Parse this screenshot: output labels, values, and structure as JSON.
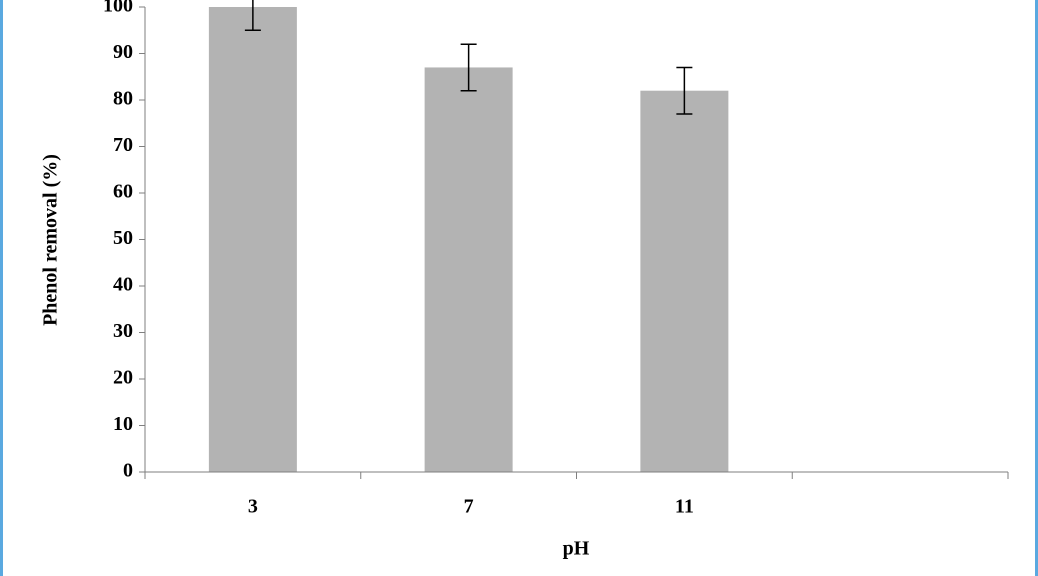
{
  "chart_data": {
    "type": "bar",
    "categories": [
      "3",
      "7",
      "11",
      null
    ],
    "values": [
      100,
      87,
      82,
      null
    ],
    "errors": [
      5,
      5,
      5,
      null
    ],
    "color": "#b3b3b3",
    "xlabel": "pH",
    "ylabel": "Phenol removal (%)",
    "ylim": [
      0,
      100
    ],
    "yticks": [
      0,
      10,
      20,
      30,
      40,
      50,
      60,
      70,
      80,
      90,
      100
    ]
  }
}
